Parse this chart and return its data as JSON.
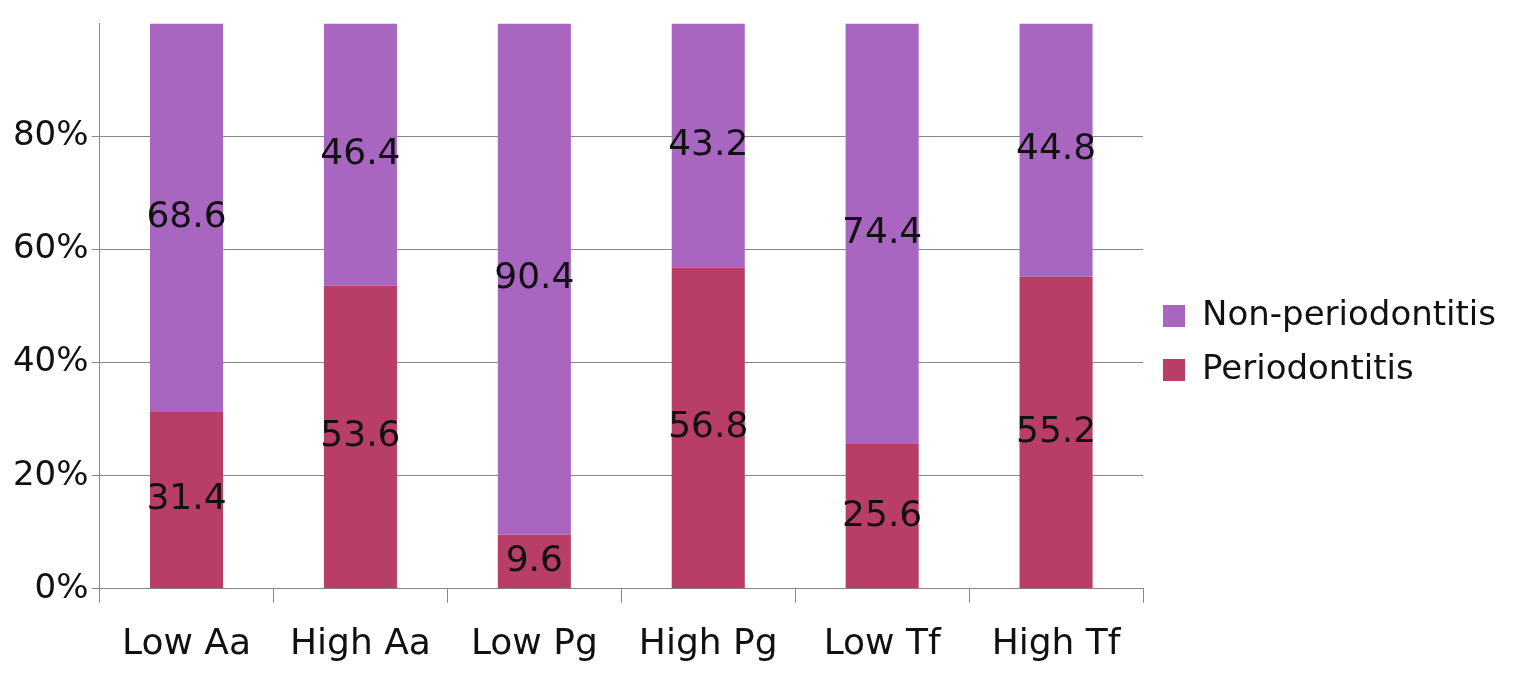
{
  "chart_data": {
    "type": "bar",
    "stacked": true,
    "categories": [
      "Low Aa",
      "High Aa",
      "Low Pg",
      "High Pg",
      "Low Tf",
      "High Tf"
    ],
    "series": [
      {
        "name": "Periodontitis",
        "color": "#b83e68",
        "values": [
          31.4,
          53.6,
          9.6,
          56.8,
          25.6,
          55.2
        ]
      },
      {
        "name": "Non-periodontitis",
        "color": "#a966c0",
        "values": [
          68.6,
          46.4,
          90.4,
          43.2,
          74.4,
          44.8
        ]
      }
    ],
    "ylim": [
      0,
      100
    ],
    "yticks": [
      {
        "value": 0,
        "label": "0%"
      },
      {
        "value": 20,
        "label": "20%"
      },
      {
        "value": 40,
        "label": "40%"
      },
      {
        "value": 60,
        "label": "60%"
      },
      {
        "value": 80,
        "label": "80%"
      }
    ],
    "grid": "y",
    "legend": "right",
    "data_labels": true
  }
}
